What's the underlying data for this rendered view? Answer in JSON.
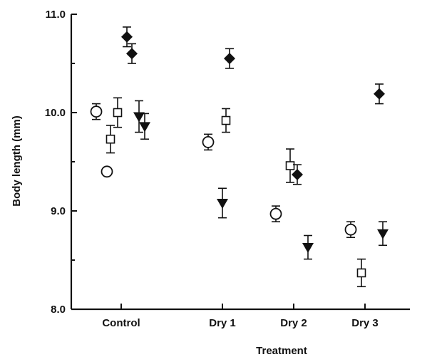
{
  "chart_data": {
    "type": "scatter",
    "title": "",
    "xlabel": "Treatment",
    "ylabel": "Body length (mm)",
    "categories": [
      "Control",
      "Dry 1",
      "Dry 2",
      "Dry 3"
    ],
    "ylim": [
      8.0,
      11.0
    ],
    "yticks": [
      {
        "value": 8.0,
        "label": "8.0"
      },
      {
        "value": 9.0,
        "label": "9.0"
      },
      {
        "value": 10.0,
        "label": "10.0"
      },
      {
        "value": 11.0,
        "label": "11.0"
      }
    ],
    "grid": false,
    "legend": "none",
    "series": [
      {
        "marker": "circle-open",
        "points": [
          {
            "category": "Control",
            "offset": -0.35,
            "y": 10.01,
            "err": 0.08
          },
          {
            "category": "Control",
            "offset": -0.2,
            "y": 9.4,
            "err": 0.03
          },
          {
            "category": "Dry 1",
            "offset": -0.2,
            "y": 9.7,
            "err": 0.08
          },
          {
            "category": "Dry 2",
            "offset": -0.25,
            "y": 8.97,
            "err": 0.08
          },
          {
            "category": "Dry 3",
            "offset": -0.2,
            "y": 8.81,
            "err": 0.08
          }
        ]
      },
      {
        "marker": "square-open",
        "points": [
          {
            "category": "Control",
            "offset": -0.15,
            "y": 9.73,
            "err": 0.14
          },
          {
            "category": "Control",
            "offset": -0.05,
            "y": 10.0,
            "err": 0.15
          },
          {
            "category": "Dry 1",
            "offset": 0.05,
            "y": 9.92,
            "err": 0.12
          },
          {
            "category": "Dry 2",
            "offset": -0.05,
            "y": 9.46,
            "err": 0.17
          },
          {
            "category": "Dry 3",
            "offset": -0.05,
            "y": 8.37,
            "err": 0.14
          }
        ]
      },
      {
        "marker": "diamond-filled",
        "points": [
          {
            "category": "Control",
            "offset": 0.08,
            "y": 10.77,
            "err": 0.1
          },
          {
            "category": "Control",
            "offset": 0.15,
            "y": 10.6,
            "err": 0.1
          },
          {
            "category": "Dry 1",
            "offset": 0.1,
            "y": 10.55,
            "err": 0.1
          },
          {
            "category": "Dry 2",
            "offset": 0.05,
            "y": 9.37,
            "err": 0.1
          },
          {
            "category": "Dry 3",
            "offset": 0.2,
            "y": 10.19,
            "err": 0.1
          }
        ]
      },
      {
        "marker": "triangle-down-filled",
        "points": [
          {
            "category": "Control",
            "offset": 0.25,
            "y": 9.96,
            "err": 0.16
          },
          {
            "category": "Control",
            "offset": 0.33,
            "y": 9.86,
            "err": 0.13
          },
          {
            "category": "Dry 1",
            "offset": 0.0,
            "y": 9.08,
            "err": 0.15
          },
          {
            "category": "Dry 2",
            "offset": 0.2,
            "y": 8.63,
            "err": 0.12
          },
          {
            "category": "Dry 3",
            "offset": 0.25,
            "y": 8.77,
            "err": 0.12
          }
        ]
      }
    ],
    "colors": {
      "ink": "#111111",
      "background": "#ffffff"
    }
  }
}
